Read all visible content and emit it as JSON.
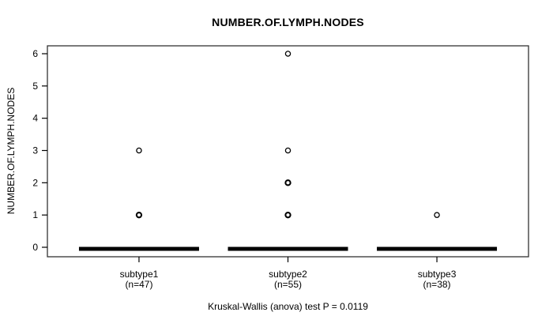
{
  "chart_data": {
    "type": "boxplot",
    "title": "NUMBER.OF.LYMPH.NODES",
    "ylabel": "NUMBER.OF.LYMPH.NODES",
    "xlabel": "",
    "caption": "Kruskal-Wallis (anova) test P = 0.0119",
    "test_p_value": 0.0119,
    "ylim": [
      0,
      6
    ],
    "yticks": [
      0,
      1,
      2,
      3,
      4,
      5,
      6
    ],
    "grid": false,
    "legend": "none",
    "groups": [
      {
        "label": "subtype1",
        "sublabel": "(n=47)",
        "n": 47,
        "median": 0,
        "q1": 0,
        "q3": 0,
        "whisker_low": 0,
        "whisker_high": 0,
        "outliers": [
          {
            "value": 3,
            "bold": false
          },
          {
            "value": 1,
            "bold": true
          }
        ]
      },
      {
        "label": "subtype2",
        "sublabel": "(n=55)",
        "n": 55,
        "median": 0,
        "q1": 0,
        "q3": 0,
        "whisker_low": 0,
        "whisker_high": 0,
        "outliers": [
          {
            "value": 6,
            "bold": false
          },
          {
            "value": 3,
            "bold": false
          },
          {
            "value": 2,
            "bold": true
          },
          {
            "value": 1,
            "bold": true
          }
        ]
      },
      {
        "label": "subtype3",
        "sublabel": "(n=38)",
        "n": 38,
        "median": 0,
        "q1": 0,
        "q3": 0,
        "whisker_low": 0,
        "whisker_high": 0,
        "outliers": [
          {
            "value": 1,
            "bold": false
          }
        ]
      }
    ],
    "colors": {
      "box": "#000000",
      "border": "#333333",
      "text": "#000000",
      "background": "#ffffff"
    }
  }
}
